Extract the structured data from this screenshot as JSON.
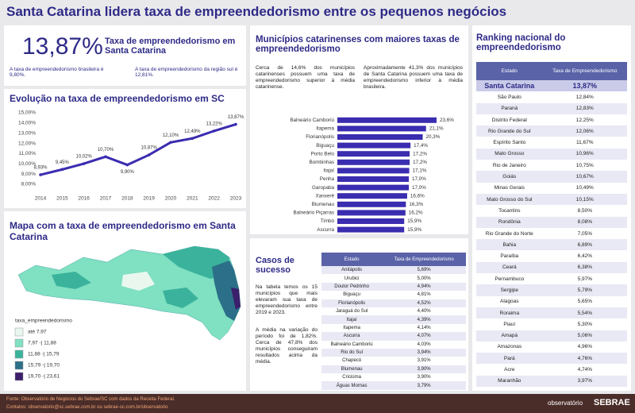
{
  "header": {
    "title": "Santa Catarina lidera taxa de empreendedorismo entre os pequenos negócios"
  },
  "kpi": {
    "value": "13,87%",
    "label": "Taxa de empreendedorismo em Santa Catarina",
    "notes": [
      "A taxa de empreendedorismo brasileira é 9,80%.",
      "A taxa de empreendedorismo da região sul é 12,81%."
    ]
  },
  "chart_data": [
    {
      "type": "line",
      "title": "Evolução na taxa de empreendedorismo em SC",
      "categories": [
        "2014",
        "2015",
        "2016",
        "2017",
        "2018",
        "2019",
        "2020",
        "2021",
        "2022",
        "2023"
      ],
      "values": [
        8.93,
        9.45,
        10.02,
        10.7,
        9.9,
        10.87,
        12.1,
        12.49,
        13.22,
        13.87
      ],
      "value_labels": [
        "8,93%",
        "9,45%",
        "10,02%",
        "10,70%",
        "9,90%",
        "10,87%",
        "12,10%",
        "12,49%",
        "13,22%",
        "13,87%"
      ],
      "color": "#3a2db0",
      "ylim": [
        8,
        15
      ],
      "yticks": [
        {
          "value": 8,
          "label": "8,00%"
        },
        {
          "value": 9,
          "label": "9,00%"
        },
        {
          "value": 10,
          "label": "10,00%"
        },
        {
          "value": 11,
          "label": "11,00%"
        },
        {
          "value": 12,
          "label": "12,00%"
        },
        {
          "value": 13,
          "label": "13,00%"
        },
        {
          "value": 14,
          "label": "14,00%"
        },
        {
          "value": 15,
          "label": "15,00%"
        }
      ],
      "grid": false
    },
    {
      "type": "bar",
      "orientation": "horizontal",
      "title": "Municípios catarinenses com maiores taxas de empreendedorismo",
      "categories": [
        "Balneário Camboriú",
        "Itapema",
        "Florianópolis",
        "Biguaçu",
        "Porto Belo",
        "Bombinhas",
        "Itajaí",
        "Penha",
        "Garopaba",
        "Xanxerê",
        "Blumenau",
        "Balneário Piçarras",
        "Timbó",
        "Ascurra"
      ],
      "values": [
        23.6,
        21.1,
        20.3,
        17.4,
        17.2,
        17.2,
        17.1,
        17.0,
        17.0,
        16.6,
        16.3,
        16.2,
        15.9,
        15.9
      ],
      "value_labels": [
        "23,6%",
        "21,1%",
        "20,3%",
        "17,4%",
        "17,2%",
        "17,2%",
        "17,1%",
        "17,0%",
        "17,0%",
        "16,6%",
        "16,3%",
        "16,2%",
        "15,9%",
        "15,9%"
      ],
      "color": "#3a2db0"
    }
  ],
  "bar_notes": [
    "Cerca de 14,6% dos municípios catarinenses possuem uma taxa de empreendedorismo superior à média catarinense.",
    "Aproximadamente 41,3% dos municípios de Santa Catarina possuem uma taxa de empreendedorismo inferior à média brasileira."
  ],
  "map": {
    "title": "Mapa com a taxa de empreendedorismo em Santa Catarina",
    "legend_title": "taxa_empreendedorismo",
    "legend": [
      {
        "label": "até 7,97",
        "color": "#e9f7ef"
      },
      {
        "label": "7,97 -| 11,88",
        "color": "#7fe0c2"
      },
      {
        "label": "11,88 -| 15,79",
        "color": "#3bb39c"
      },
      {
        "label": "15,79 -| 19,70",
        "color": "#2c6f88"
      },
      {
        "label": "19,70 -| 23,61",
        "color": "#3b1f6b"
      }
    ]
  },
  "success_cases": {
    "title": "Casos de sucesso",
    "notes": [
      "Na tabela temos os 15 municípios que mais elevaram sua taxa de empreendedorismo entre 2019 e 2023.",
      "A média na variação do período foi de 1,82%. Cerca de 47,8% dos municípios conseguiram resultados acima da média."
    ],
    "table": {
      "header": [
        "Estado",
        "Taxa de Empreendedorismo"
      ],
      "rows": [
        [
          "Anitápolis",
          "5,69%"
        ],
        [
          "Urubici",
          "5,00%"
        ],
        [
          "Doutor Pedrinho",
          "4,94%"
        ],
        [
          "Biguaçu",
          "4,81%"
        ],
        [
          "Florianópolis",
          "4,52%"
        ],
        [
          "Jaraguá do Sul",
          "4,40%"
        ],
        [
          "Itajaí",
          "4,39%"
        ],
        [
          "Itapema",
          "4,14%"
        ],
        [
          "Ascurra",
          "4,07%"
        ],
        [
          "Balneário Camboriú",
          "4,03%"
        ],
        [
          "Rio do Sul",
          "3,94%"
        ],
        [
          "Chapecó",
          "3,91%"
        ],
        [
          "Blumenau",
          "3,90%"
        ],
        [
          "Criciúma",
          "3,90%"
        ],
        [
          "Águas Mornas",
          "3,79%"
        ]
      ]
    }
  },
  "ranking": {
    "title": "Ranking nacional do empreendedorismo",
    "table": {
      "header": [
        "Estado",
        "Taxa de Empreendedorismo"
      ],
      "rows": [
        [
          "Santa Catarina",
          "13,87%"
        ],
        [
          "São Paulo",
          "12,84%"
        ],
        [
          "Paraná",
          "12,83%"
        ],
        [
          "Distrito Federal",
          "12,25%"
        ],
        [
          "Rio Grande do Sul",
          "12,06%"
        ],
        [
          "Espírito Santo",
          "11,67%"
        ],
        [
          "Mato Grosso",
          "10,96%"
        ],
        [
          "Rio de Janeiro",
          "10,75%"
        ],
        [
          "Goiás",
          "10,67%"
        ],
        [
          "Minas Gerais",
          "10,49%"
        ],
        [
          "Mato Grosso do Sul",
          "10,15%"
        ],
        [
          "Tocantins",
          "8,50%"
        ],
        [
          "Rondônia",
          "8,08%"
        ],
        [
          "Rio Grande do Norte",
          "7,05%"
        ],
        [
          "Bahia",
          "6,89%"
        ],
        [
          "Paraíba",
          "6,42%"
        ],
        [
          "Ceará",
          "6,38%"
        ],
        [
          "Pernambuco",
          "5,97%"
        ],
        [
          "Sergipe",
          "5,79%"
        ],
        [
          "Alagoas",
          "5,65%"
        ],
        [
          "Roraima",
          "5,54%"
        ],
        [
          "Piauí",
          "5,30%"
        ],
        [
          "Amapá",
          "5,06%"
        ],
        [
          "Amazonas",
          "4,96%"
        ],
        [
          "Pará",
          "4,76%"
        ],
        [
          "Acre",
          "4,74%"
        ],
        [
          "Maranhão",
          "3,97%"
        ]
      ]
    }
  },
  "footer": {
    "source": "Fonte: Observatório de Negócios do Sebrae/SC com dados da Receita Federal.",
    "contacts": "Contatos: observatorio@sc.sebrae.com.br ou sebrae-sc.com.br/observatorio"
  },
  "logos": [
    "observatório",
    "SEBRAE"
  ]
}
